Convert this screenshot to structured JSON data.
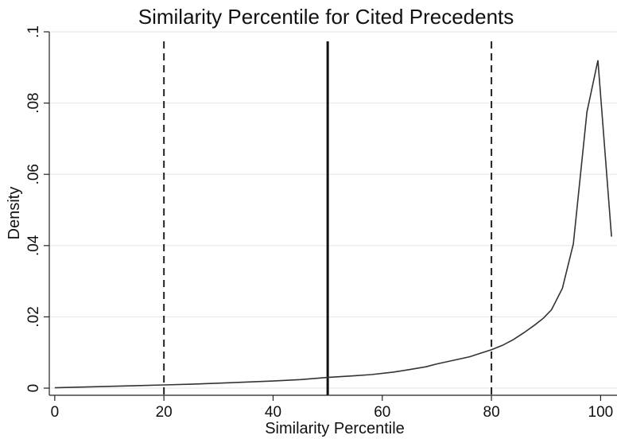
{
  "chart_data": {
    "type": "line",
    "title": "Similarity Percentile for Cited Precedents",
    "xlabel": "Similarity Percentile",
    "ylabel": "Density",
    "xlim": [
      -1,
      103
    ],
    "ylim": [
      -0.002,
      0.1
    ],
    "xticks": [
      0,
      20,
      40,
      60,
      80,
      100
    ],
    "xtick_labels": [
      "0",
      "20",
      "40",
      "60",
      "80",
      "100"
    ],
    "yticks": [
      0,
      0.02,
      0.04,
      0.06,
      0.08,
      0.1
    ],
    "ytick_labels": [
      "0",
      ".02",
      ".04",
      ".06",
      ".08",
      ".1"
    ],
    "grid": true,
    "series": [
      {
        "x": [
          0,
          5,
          10,
          15,
          20,
          25,
          30,
          35,
          40,
          45,
          50,
          55,
          58,
          62,
          65,
          68,
          70,
          73,
          76,
          78,
          80,
          82,
          84,
          86,
          88,
          89.5,
          91,
          93,
          95,
          97.5,
          99.5,
          102
        ],
        "y": [
          0.0001,
          0.0003,
          0.0005,
          0.0007,
          0.0009,
          0.0011,
          0.0014,
          0.0017,
          0.002,
          0.0024,
          0.003,
          0.0035,
          0.0038,
          0.0045,
          0.0052,
          0.006,
          0.0068,
          0.0078,
          0.0088,
          0.0098,
          0.0108,
          0.012,
          0.0136,
          0.0156,
          0.0178,
          0.0196,
          0.022,
          0.028,
          0.0405,
          0.0775,
          0.092,
          0.0425
        ]
      }
    ],
    "reference_lines": [
      {
        "x": 20,
        "style": "dashed"
      },
      {
        "x": 50,
        "style": "solid"
      },
      {
        "x": 80,
        "style": "dashed"
      }
    ]
  }
}
